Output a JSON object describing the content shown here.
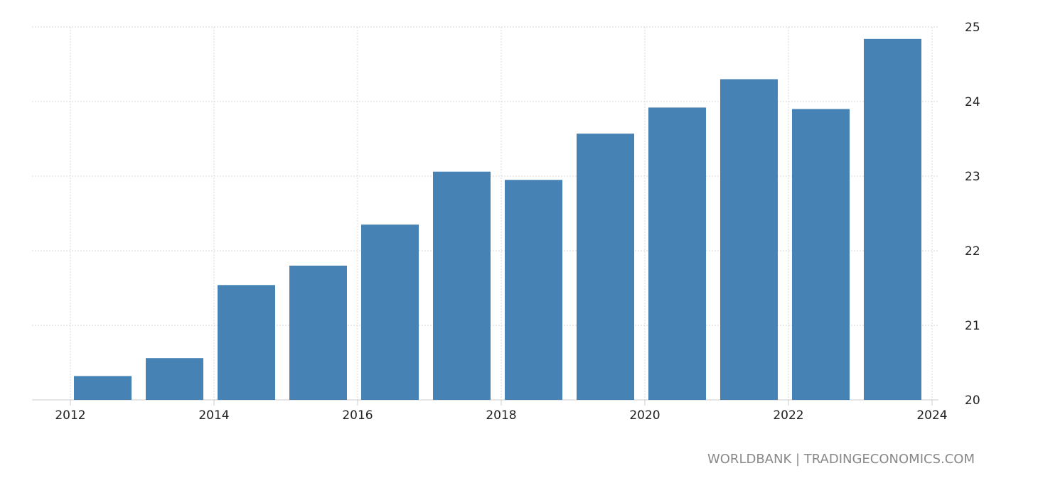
{
  "chart_data": {
    "type": "bar",
    "title": "",
    "xlabel": "",
    "ylabel": "",
    "categories": [
      "2012",
      "2013",
      "2014",
      "2015",
      "2016",
      "2017",
      "2018",
      "2019",
      "2020",
      "2021",
      "2022",
      "2023"
    ],
    "values": [
      20.32,
      20.56,
      21.54,
      21.8,
      22.35,
      23.06,
      22.95,
      23.57,
      23.92,
      24.3,
      23.9,
      24.84
    ],
    "ylim": [
      20,
      25
    ],
    "y_ticks": [
      "20",
      "21",
      "22",
      "23",
      "24",
      "25"
    ],
    "x_ticks": [
      "2012",
      "2014",
      "2016",
      "2018",
      "2020",
      "2022",
      "2024"
    ],
    "y_axis_side": "right",
    "grid": true,
    "bar_color": "#4682b4",
    "grid_color": "#d9d9d9"
  },
  "credit": "WORLDBANK | TRADINGECONOMICS.COM"
}
